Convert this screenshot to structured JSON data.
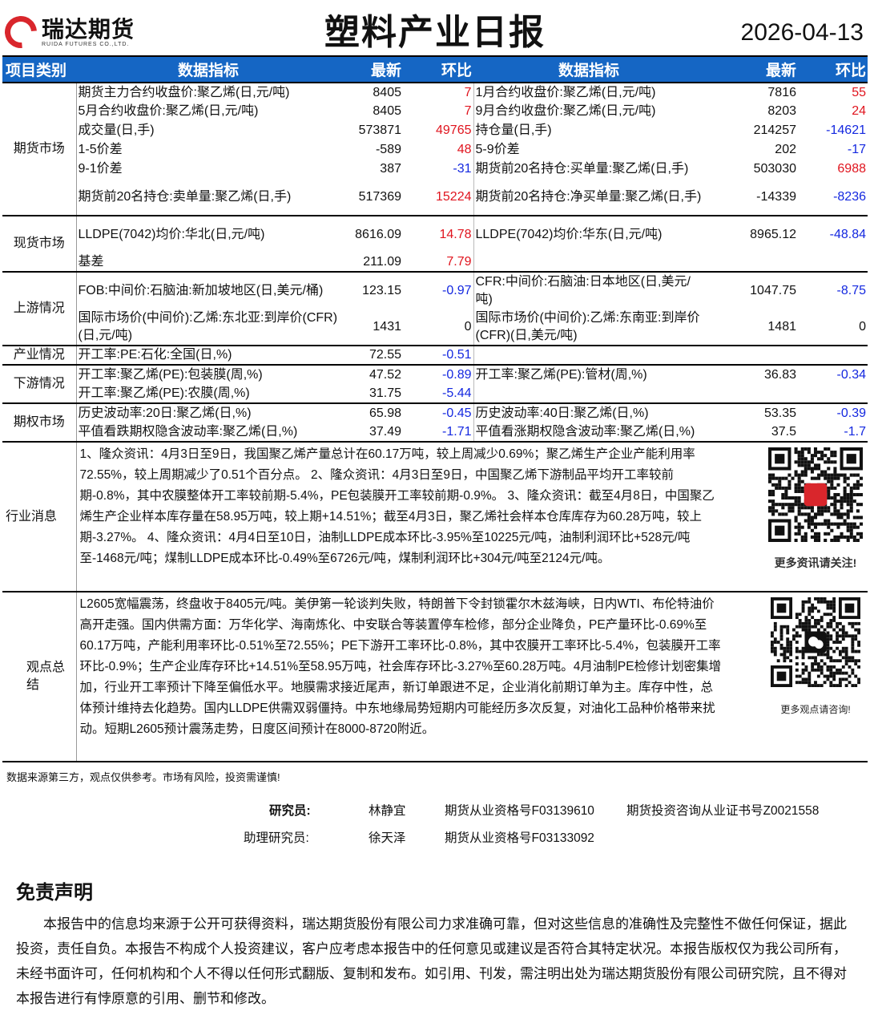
{
  "header": {
    "logo_cn": "瑞达期货",
    "logo_en": "RUIDA FUTURES CO.,LTD.",
    "title": "塑料产业日报",
    "date": "2026-04-13",
    "brand_color": "#d9262c"
  },
  "table": {
    "headers": [
      "项目类别",
      "数据指标",
      "最新",
      "环比",
      "数据指标",
      "最新",
      "环比"
    ],
    "header_color": "#1566c4",
    "up_color": "#e0141e",
    "down_color": "#1428e0",
    "sections": [
      {
        "category": "期货市场",
        "rows": [
          [
            "期货主力合约收盘价:聚乙烯(日,元/吨)",
            "8405",
            "7",
            "1月合约收盘价:聚乙烯(日,元/吨)",
            "7816",
            "55"
          ],
          [
            "5月合约收盘价:聚乙烯(日,元/吨)",
            "8405",
            "7",
            "9月合约收盘价:聚乙烯(日,元/吨)",
            "8203",
            "24"
          ],
          [
            "成交量(日,手)",
            "573871",
            "49765",
            "持仓量(日,手)",
            "214257",
            "-14621"
          ],
          [
            "1-5价差",
            "-589",
            "48",
            "5-9价差",
            "202",
            "-17"
          ],
          [
            "9-1价差",
            "387",
            "-31",
            "期货前20名持仓:买单量:聚乙烯(日,手)",
            "503030",
            "6988"
          ],
          [
            "期货前20名持仓:卖单量:聚乙烯(日,手)",
            "517369",
            "15224",
            "期货前20名持仓:净买单量:聚乙烯(日,手)",
            "-14339",
            "-8236"
          ]
        ]
      },
      {
        "category": "现货市场",
        "rows": [
          [
            "LLDPE(7042)均价:华北(日,元/吨)",
            "8616.09",
            "14.78",
            "LLDPE(7042)均价:华东(日,元/吨)",
            "8965.12",
            "-48.84"
          ],
          [
            "基差",
            "211.09",
            "7.79",
            "",
            "",
            ""
          ]
        ]
      },
      {
        "category": "上游情况",
        "rows": [
          [
            "FOB:中间价:石脑油:新加坡地区(日,美元/桶)",
            "123.15",
            "-0.97",
            "CFR:中间价:石脑油:日本地区(日,美元/吨)",
            "1047.75",
            "-8.75"
          ],
          [
            "国际市场价(中间价):乙烯:东北亚:到岸价(CFR)(日,元/吨)",
            "1431",
            "0",
            "国际市场价(中间价):乙烯:东南亚:到岸价(CFR)(日,美元/吨)",
            "1481",
            "0"
          ]
        ]
      },
      {
        "category": "产业情况",
        "rows": [
          [
            "开工率:PE:石化:全国(日,%)",
            "72.55",
            "-0.51",
            "",
            "",
            ""
          ]
        ]
      },
      {
        "category": "下游情况",
        "rows": [
          [
            "开工率:聚乙烯(PE):包装膜(周,%)",
            "47.52",
            "-0.89",
            "开工率:聚乙烯(PE):管材(周,%)",
            "36.83",
            "-0.34"
          ],
          [
            "开工率:聚乙烯(PE):农膜(周,%)",
            "31.75",
            "-5.44",
            "",
            "",
            ""
          ]
        ]
      },
      {
        "category": "期权市场",
        "rows": [
          [
            "历史波动率:20日:聚乙烯(日,%)",
            "65.98",
            "-0.45",
            "历史波动率:40日:聚乙烯(日,%)",
            "53.35",
            "-0.39"
          ],
          [
            "平值看跌期权隐含波动率:聚乙烯(日,%)",
            "37.49",
            "-1.71",
            "平值看涨期权隐含波动率:聚乙烯(日,%)",
            "37.5",
            "-1.7"
          ]
        ]
      }
    ],
    "news": {
      "category": "行业消息",
      "text": "1、隆众资讯：4月3日至9日，我国聚乙烯产量总计在60.17万吨，较上周减少0.69%；聚乙烯生产企业产能利用率72.55%，较上周期减少了0.51个百分点。 2、隆众资讯：4月3日至9日，中国聚乙烯下游制品平均开工率较前期-0.8%，其中农膜整体开工率较前期-5.4%，PE包装膜开工率较前期-0.9%。 3、隆众资讯：截至4月8日，中国聚乙烯生产企业样本库存量在58.95万吨，较上期+14.51%；截至4月3日，聚乙烯社会样本仓库库存为60.28万吨，较上期-3.27%。 4、隆众资讯：4月4日至10日，油制LLDPE成本环比-3.95%至10225元/吨，油制利润环比+528元/吨至-1468元/吨；煤制LLDPE成本环比-0.49%至6726元/吨，煤制利润环比+304元/吨至2124元/吨。",
      "qr_caption": "更多资讯请关注!"
    },
    "view": {
      "category": "观点总结",
      "text": "L2605宽幅震荡，终盘收于8405元/吨。美伊第一轮谈判失败，特朗普下令封锁霍尔木兹海峡，日内WTI、布伦特油价高开走强。国内供需方面：万华化学、海南炼化、中安联合等装置停车检修，部分企业降负，PE产量环比-0.69%至60.17万吨，产能利用率环比-0.51%至72.55%；PE下游开工率环比-0.8%，其中农膜开工率环比-5.4%，包装膜开工率环比-0.9%；生产企业库存环比+14.51%至58.95万吨，社会库存环比-3.27%至60.28万吨。4月油制PE检修计划密集增加，行业开工率预计下降至偏低水平。地膜需求接近尾声，新订单跟进不足，企业消化前期订单为主。库存中性，总体预计维持去化趋势。国内LLDPE供需双弱僵持。中东地缘局势短期内可能经历多次反复，对油化工品种价格带来扰动。短期L2605预计震荡走势，日度区间预计在8000-8720附近。",
      "qr_caption": "更多观点请咨询!"
    }
  },
  "footer": {
    "note": "数据来源第三方，观点仅供参考。市场有风险，投资需谨慎!",
    "researcher_label": "研究员:",
    "researcher_name": "林静宜",
    "researcher_cert1": "期货从业资格号F03139610",
    "researcher_cert2": "期货投资咨询从业证书号Z0021558",
    "assistant_label": "助理研究员:",
    "assistant_name": "徐天泽",
    "assistant_cert": "期货从业资格号F03133092",
    "disclaimer_title": "免责声明",
    "disclaimer": "本报告中的信息均来源于公开可获得资料，瑞达期货股份有限公司力求准确可靠，但对这些信息的准确性及完整性不做任何保证，据此投资，责任自负。本报告不构成个人投资建议，客户应考虑本报告中的任何意见或建议是否符合其特定状况。本报告版权仅为我公司所有，未经书面许可，任何机构和个人不得以任何形式翻版、复制和发布。如引用、刊发，需注明出处为瑞达期货股份有限公司研究院，且不得对本报告进行有悖原意的引用、删节和修改。"
  }
}
